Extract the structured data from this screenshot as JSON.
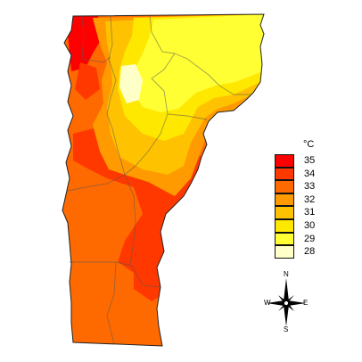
{
  "legend": {
    "title": "°C",
    "items": [
      {
        "label": "35",
        "color": "#ff0000"
      },
      {
        "label": "34",
        "color": "#ff3800"
      },
      {
        "label": "33",
        "color": "#ff6a00"
      },
      {
        "label": "32",
        "color": "#ff9a00"
      },
      {
        "label": "31",
        "color": "#ffc200"
      },
      {
        "label": "30",
        "color": "#ffe800"
      },
      {
        "label": "29",
        "color": "#ffff33"
      },
      {
        "label": "28",
        "color": "#ffffc8"
      }
    ]
  },
  "compass": {
    "north": "N",
    "south": "S",
    "east": "E",
    "west": "W",
    "icon": "compass-rose-icon"
  }
}
